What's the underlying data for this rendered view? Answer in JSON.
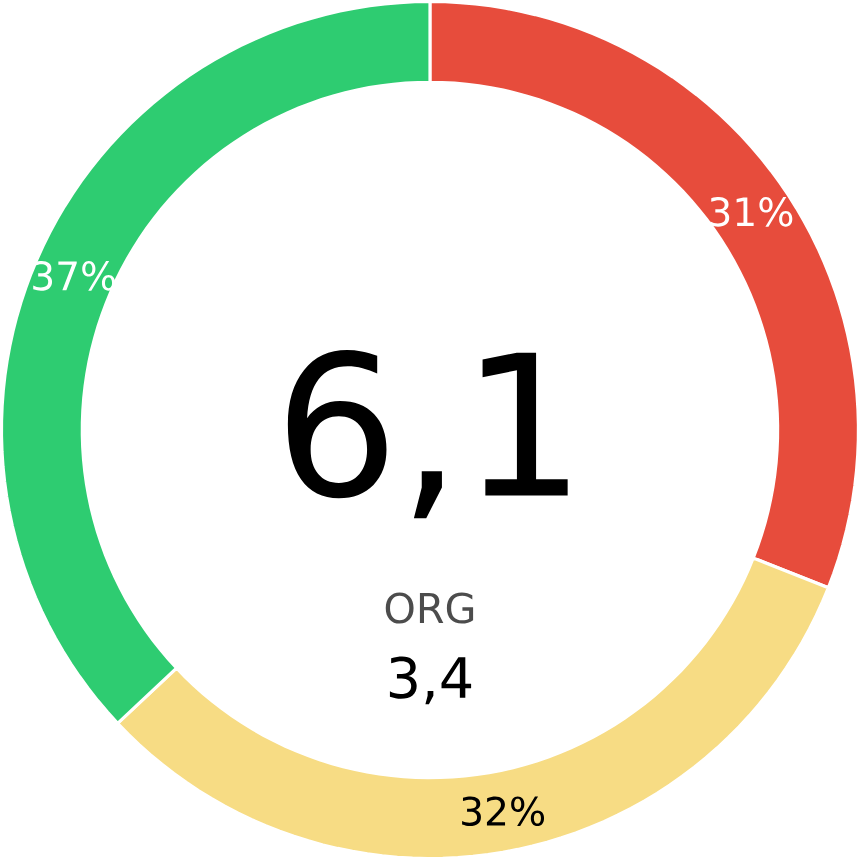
{
  "chart_data": {
    "type": "donut",
    "categories": [
      null,
      null,
      null
    ],
    "values": [
      31,
      32,
      37
    ],
    "colors": [
      "#e74c3c",
      "#f7dc84",
      "#2ecc71"
    ],
    "value_labels": [
      "31%",
      "32%",
      "37%"
    ],
    "annotations": [
      "6,1",
      "ORG",
      "3,4"
    ]
  }
}
